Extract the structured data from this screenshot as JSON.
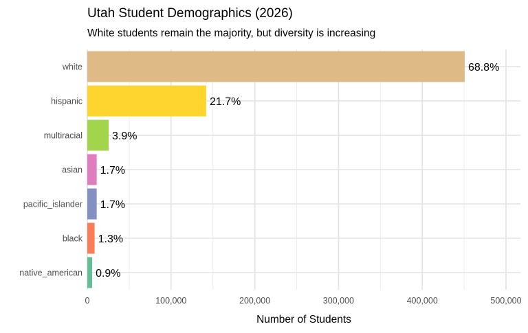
{
  "chart_data": {
    "type": "bar",
    "orientation": "horizontal",
    "title": "Utah Student Demographics (2026)",
    "subtitle": "White students remain the majority, but diversity is increasing",
    "xlabel": "Number of Students",
    "ylabel": "",
    "xlim": [
      0,
      520000
    ],
    "xticks": [
      0,
      100000,
      200000,
      300000,
      400000,
      500000
    ],
    "xtick_labels": [
      "0",
      "100,000",
      "200,000",
      "300,000",
      "400,000",
      "500,000"
    ],
    "grid": true,
    "categories": [
      "white",
      "hispanic",
      "multiracial",
      "asian",
      "pacific_islander",
      "black",
      "native_american"
    ],
    "values": [
      450700,
      142000,
      25500,
      11200,
      11200,
      8700,
      5800
    ],
    "labels": [
      "68.8%",
      "21.7%",
      "3.9%",
      "1.7%",
      "1.7%",
      "1.3%",
      "0.9%"
    ],
    "colors": [
      "#DEBA87",
      "#FED52F",
      "#A2D54C",
      "#E07DBF",
      "#8490C2",
      "#F97E58",
      "#63BF96"
    ]
  }
}
